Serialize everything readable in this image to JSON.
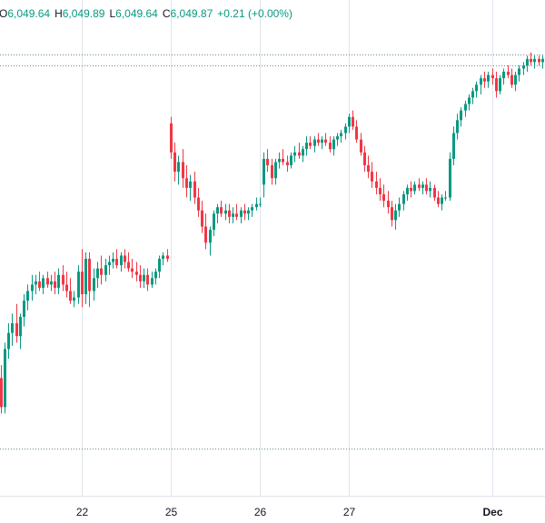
{
  "legend": {
    "open_label": "O",
    "open_value": "6,049.64",
    "high_label": "H",
    "high_value": "6,049.89",
    "low_label": "L",
    "low_value": "6,049.64",
    "close_label": "C",
    "close_value": "6,049.87",
    "change": "+0.21 (+0.00%)"
  },
  "colors": {
    "up": "#089981",
    "down": "#f23645",
    "grid": "#e0e3eb",
    "text": "#131722",
    "ref_line": "#6a8f8a"
  },
  "chart_data": {
    "type": "candlestick",
    "x_ticks": [
      {
        "label": "22",
        "index": 21,
        "bold": false
      },
      {
        "label": "25",
        "index": 44,
        "bold": false
      },
      {
        "label": "26",
        "index": 67,
        "bold": false
      },
      {
        "label": "27",
        "index": 90,
        "bold": false
      },
      {
        "label": "Dec",
        "index": 127,
        "bold": true
      }
    ],
    "ylim": [
      5920,
      6058
    ],
    "reference_lines": [
      6052.4,
      6049.0,
      5930.2
    ],
    "candles": [
      {
        "o": 5952,
        "h": 5956,
        "l": 5941,
        "c": 5943
      },
      {
        "o": 5943,
        "h": 5963,
        "l": 5941,
        "c": 5961
      },
      {
        "o": 5961,
        "h": 5969,
        "l": 5958,
        "c": 5966
      },
      {
        "o": 5966,
        "h": 5972,
        "l": 5962,
        "c": 5969
      },
      {
        "o": 5969,
        "h": 5975,
        "l": 5963,
        "c": 5965
      },
      {
        "o": 5965,
        "h": 5972,
        "l": 5961,
        "c": 5971
      },
      {
        "o": 5971,
        "h": 5978,
        "l": 5968,
        "c": 5976
      },
      {
        "o": 5976,
        "h": 5981,
        "l": 5973,
        "c": 5979
      },
      {
        "o": 5979,
        "h": 5984,
        "l": 5976,
        "c": 5981
      },
      {
        "o": 5981,
        "h": 5984,
        "l": 5978,
        "c": 5982
      },
      {
        "o": 5982,
        "h": 5985,
        "l": 5979,
        "c": 5980
      },
      {
        "o": 5980,
        "h": 5984,
        "l": 5978,
        "c": 5983
      },
      {
        "o": 5983,
        "h": 5985,
        "l": 5980,
        "c": 5981
      },
      {
        "o": 5981,
        "h": 5984,
        "l": 5979,
        "c": 5982
      },
      {
        "o": 5982,
        "h": 5985,
        "l": 5978,
        "c": 5980
      },
      {
        "o": 5980,
        "h": 5986,
        "l": 5978,
        "c": 5984
      },
      {
        "o": 5984,
        "h": 5987,
        "l": 5979,
        "c": 5981
      },
      {
        "o": 5981,
        "h": 5985,
        "l": 5977,
        "c": 5979
      },
      {
        "o": 5979,
        "h": 5983,
        "l": 5975,
        "c": 5976
      },
      {
        "o": 5976,
        "h": 5979,
        "l": 5974,
        "c": 5977
      },
      {
        "o": 5977,
        "h": 5987,
        "l": 5975,
        "c": 5985
      },
      {
        "o": 5985,
        "h": 5992,
        "l": 5974,
        "c": 5978
      },
      {
        "o": 5978,
        "h": 5991,
        "l": 5975,
        "c": 5989
      },
      {
        "o": 5989,
        "h": 5991,
        "l": 5974,
        "c": 5979
      },
      {
        "o": 5979,
        "h": 5986,
        "l": 5976,
        "c": 5983
      },
      {
        "o": 5983,
        "h": 5988,
        "l": 5980,
        "c": 5986
      },
      {
        "o": 5986,
        "h": 5990,
        "l": 5981,
        "c": 5984
      },
      {
        "o": 5984,
        "h": 5989,
        "l": 5982,
        "c": 5987
      },
      {
        "o": 5987,
        "h": 5990,
        "l": 5984,
        "c": 5988
      },
      {
        "o": 5988,
        "h": 5991,
        "l": 5986,
        "c": 5989
      },
      {
        "o": 5989,
        "h": 5992,
        "l": 5986,
        "c": 5987
      },
      {
        "o": 5987,
        "h": 5991,
        "l": 5985,
        "c": 5990
      },
      {
        "o": 5990,
        "h": 5992,
        "l": 5986,
        "c": 5988
      },
      {
        "o": 5988,
        "h": 5991,
        "l": 5985,
        "c": 5986
      },
      {
        "o": 5986,
        "h": 5989,
        "l": 5983,
        "c": 5985
      },
      {
        "o": 5985,
        "h": 5988,
        "l": 5982,
        "c": 5984
      },
      {
        "o": 5984,
        "h": 5987,
        "l": 5980,
        "c": 5982
      },
      {
        "o": 5982,
        "h": 5986,
        "l": 5980,
        "c": 5984
      },
      {
        "o": 5984,
        "h": 5986,
        "l": 5979,
        "c": 5981
      },
      {
        "o": 5981,
        "h": 5985,
        "l": 5980,
        "c": 5983
      },
      {
        "o": 5983,
        "h": 5986,
        "l": 5981,
        "c": 5985
      },
      {
        "o": 5985,
        "h": 5990,
        "l": 5983,
        "c": 5989
      },
      {
        "o": 5989,
        "h": 5991,
        "l": 5987,
        "c": 5990
      },
      {
        "o": 5990,
        "h": 5992,
        "l": 5988,
        "c": 5989
      },
      {
        "o": 6031,
        "h": 6033,
        "l": 6020,
        "c": 6022
      },
      {
        "o": 6022,
        "h": 6025,
        "l": 6013,
        "c": 6016
      },
      {
        "o": 6016,
        "h": 6021,
        "l": 6012,
        "c": 6019
      },
      {
        "o": 6019,
        "h": 6023,
        "l": 6011,
        "c": 6014
      },
      {
        "o": 6014,
        "h": 6018,
        "l": 6008,
        "c": 6011
      },
      {
        "o": 6011,
        "h": 6015,
        "l": 6007,
        "c": 6013
      },
      {
        "o": 6013,
        "h": 6016,
        "l": 6006,
        "c": 6008
      },
      {
        "o": 6008,
        "h": 6011,
        "l": 6002,
        "c": 6004
      },
      {
        "o": 6004,
        "h": 6007,
        "l": 5997,
        "c": 5999
      },
      {
        "o": 5999,
        "h": 6003,
        "l": 5992,
        "c": 5994
      },
      {
        "o": 5994,
        "h": 5999,
        "l": 5990,
        "c": 5998
      },
      {
        "o": 5998,
        "h": 6004,
        "l": 5996,
        "c": 6003
      },
      {
        "o": 6003,
        "h": 6006,
        "l": 6000,
        "c": 6005
      },
      {
        "o": 6005,
        "h": 6007,
        "l": 6002,
        "c": 6003
      },
      {
        "o": 6003,
        "h": 6006,
        "l": 6001,
        "c": 6004
      },
      {
        "o": 6004,
        "h": 6006,
        "l": 6000,
        "c": 6002
      },
      {
        "o": 6002,
        "h": 6005,
        "l": 6000,
        "c": 6003
      },
      {
        "o": 6003,
        "h": 6006,
        "l": 6001,
        "c": 6002
      },
      {
        "o": 6002,
        "h": 6005,
        "l": 6000,
        "c": 6004
      },
      {
        "o": 6004,
        "h": 6006,
        "l": 6001,
        "c": 6003
      },
      {
        "o": 6003,
        "h": 6005,
        "l": 6001,
        "c": 6004
      },
      {
        "o": 6004,
        "h": 6006,
        "l": 6002,
        "c": 6005
      },
      {
        "o": 6005,
        "h": 6008,
        "l": 6004,
        "c": 6006
      },
      {
        "o": 6006,
        "h": 6008,
        "l": 6005,
        "c": 6006
      },
      {
        "o": 6012,
        "h": 6022,
        "l": 6008,
        "c": 6020
      },
      {
        "o": 6020,
        "h": 6023,
        "l": 6016,
        "c": 6018
      },
      {
        "o": 6018,
        "h": 6020,
        "l": 6012,
        "c": 6014
      },
      {
        "o": 6014,
        "h": 6020,
        "l": 6012,
        "c": 6019
      },
      {
        "o": 6019,
        "h": 6022,
        "l": 6017,
        "c": 6020
      },
      {
        "o": 6020,
        "h": 6023,
        "l": 6018,
        "c": 6019
      },
      {
        "o": 6019,
        "h": 6021,
        "l": 6016,
        "c": 6018
      },
      {
        "o": 6018,
        "h": 6022,
        "l": 6017,
        "c": 6021
      },
      {
        "o": 6021,
        "h": 6024,
        "l": 6019,
        "c": 6022
      },
      {
        "o": 6022,
        "h": 6025,
        "l": 6020,
        "c": 6021
      },
      {
        "o": 6021,
        "h": 6024,
        "l": 6019,
        "c": 6023
      },
      {
        "o": 6023,
        "h": 6027,
        "l": 6021,
        "c": 6025
      },
      {
        "o": 6025,
        "h": 6027,
        "l": 6023,
        "c": 6024
      },
      {
        "o": 6024,
        "h": 6027,
        "l": 6022,
        "c": 6026
      },
      {
        "o": 6026,
        "h": 6028,
        "l": 6024,
        "c": 6025
      },
      {
        "o": 6025,
        "h": 6027,
        "l": 6023,
        "c": 6026
      },
      {
        "o": 6026,
        "h": 6028,
        "l": 6024,
        "c": 6025
      },
      {
        "o": 6025,
        "h": 6027,
        "l": 6022,
        "c": 6023
      },
      {
        "o": 6023,
        "h": 6027,
        "l": 6021,
        "c": 6026
      },
      {
        "o": 6026,
        "h": 6028,
        "l": 6024,
        "c": 6027
      },
      {
        "o": 6027,
        "h": 6029,
        "l": 6025,
        "c": 6028
      },
      {
        "o": 6028,
        "h": 6031,
        "l": 6026,
        "c": 6030
      },
      {
        "o": 6030,
        "h": 6034,
        "l": 6028,
        "c": 6033
      },
      {
        "o": 6033,
        "h": 6035,
        "l": 6029,
        "c": 6030
      },
      {
        "o": 6030,
        "h": 6032,
        "l": 6025,
        "c": 6026
      },
      {
        "o": 6026,
        "h": 6028,
        "l": 6021,
        "c": 6022
      },
      {
        "o": 6022,
        "h": 6024,
        "l": 6016,
        "c": 6018
      },
      {
        "o": 6018,
        "h": 6021,
        "l": 6014,
        "c": 6016
      },
      {
        "o": 6016,
        "h": 6019,
        "l": 6011,
        "c": 6013
      },
      {
        "o": 6013,
        "h": 6016,
        "l": 6009,
        "c": 6011
      },
      {
        "o": 6011,
        "h": 6014,
        "l": 6007,
        "c": 6009
      },
      {
        "o": 6009,
        "h": 6012,
        "l": 6005,
        "c": 6007
      },
      {
        "o": 6007,
        "h": 6010,
        "l": 6003,
        "c": 6005
      },
      {
        "o": 6005,
        "h": 6007,
        "l": 5999,
        "c": 6001
      },
      {
        "o": 6001,
        "h": 6006,
        "l": 5998,
        "c": 6004
      },
      {
        "o": 6004,
        "h": 6008,
        "l": 6002,
        "c": 6006
      },
      {
        "o": 6006,
        "h": 6010,
        "l": 6004,
        "c": 6009
      },
      {
        "o": 6009,
        "h": 6012,
        "l": 6007,
        "c": 6011
      },
      {
        "o": 6011,
        "h": 6013,
        "l": 6008,
        "c": 6010
      },
      {
        "o": 6010,
        "h": 6013,
        "l": 6009,
        "c": 6012
      },
      {
        "o": 6012,
        "h": 6014,
        "l": 6010,
        "c": 6011
      },
      {
        "o": 6011,
        "h": 6013,
        "l": 6009,
        "c": 6012
      },
      {
        "o": 6012,
        "h": 6014,
        "l": 6009,
        "c": 6010
      },
      {
        "o": 6010,
        "h": 6013,
        "l": 6008,
        "c": 6011
      },
      {
        "o": 6011,
        "h": 6012,
        "l": 6007,
        "c": 6008
      },
      {
        "o": 6008,
        "h": 6010,
        "l": 6005,
        "c": 6006
      },
      {
        "o": 6006,
        "h": 6009,
        "l": 6004,
        "c": 6008
      },
      {
        "o": 6008,
        "h": 6010,
        "l": 6007,
        "c": 6008
      },
      {
        "o": 6008,
        "h": 6022,
        "l": 6007,
        "c": 6020
      },
      {
        "o": 6020,
        "h": 6030,
        "l": 6018,
        "c": 6028
      },
      {
        "o": 6028,
        "h": 6034,
        "l": 6026,
        "c": 6032
      },
      {
        "o": 6032,
        "h": 6036,
        "l": 6030,
        "c": 6035
      },
      {
        "o": 6035,
        "h": 6038,
        "l": 6033,
        "c": 6037
      },
      {
        "o": 6037,
        "h": 6040,
        "l": 6035,
        "c": 6039
      },
      {
        "o": 6039,
        "h": 6042,
        "l": 6037,
        "c": 6041
      },
      {
        "o": 6041,
        "h": 6044,
        "l": 6039,
        "c": 6043
      },
      {
        "o": 6043,
        "h": 6046,
        "l": 6040,
        "c": 6045
      },
      {
        "o": 6045,
        "h": 6047,
        "l": 6042,
        "c": 6044
      },
      {
        "o": 6044,
        "h": 6047,
        "l": 6042,
        "c": 6046
      },
      {
        "o": 6046,
        "h": 6048,
        "l": 6043,
        "c": 6045
      },
      {
        "o": 6045,
        "h": 6047,
        "l": 6039,
        "c": 6041
      },
      {
        "o": 6041,
        "h": 6046,
        "l": 6040,
        "c": 6045
      },
      {
        "o": 6045,
        "h": 6048,
        "l": 6043,
        "c": 6047
      },
      {
        "o": 6047,
        "h": 6049,
        "l": 6045,
        "c": 6046
      },
      {
        "o": 6046,
        "h": 6048,
        "l": 6042,
        "c": 6043
      },
      {
        "o": 6043,
        "h": 6047,
        "l": 6041,
        "c": 6046
      },
      {
        "o": 6046,
        "h": 6049,
        "l": 6044,
        "c": 6048
      },
      {
        "o": 6048,
        "h": 6050,
        "l": 6046,
        "c": 6049
      },
      {
        "o": 6049,
        "h": 6052,
        "l": 6047,
        "c": 6051
      },
      {
        "o": 6051,
        "h": 6053,
        "l": 6049,
        "c": 6050
      },
      {
        "o": 6050,
        "h": 6052,
        "l": 6048,
        "c": 6051
      },
      {
        "o": 6051,
        "h": 6052,
        "l": 6049,
        "c": 6050
      },
      {
        "o": 6050,
        "h": 6052,
        "l": 6048,
        "c": 6051
      },
      {
        "o": 6051,
        "h": 6052,
        "l": 6048,
        "c": 6049
      },
      {
        "o": 6049,
        "h": 6051,
        "l": 6047,
        "c": 6050
      },
      {
        "o": 6050,
        "h": 6051,
        "l": 6045,
        "c": 6046
      },
      {
        "o": 6049.64,
        "h": 6049.89,
        "l": 6049.64,
        "c": 6049.87
      }
    ]
  }
}
